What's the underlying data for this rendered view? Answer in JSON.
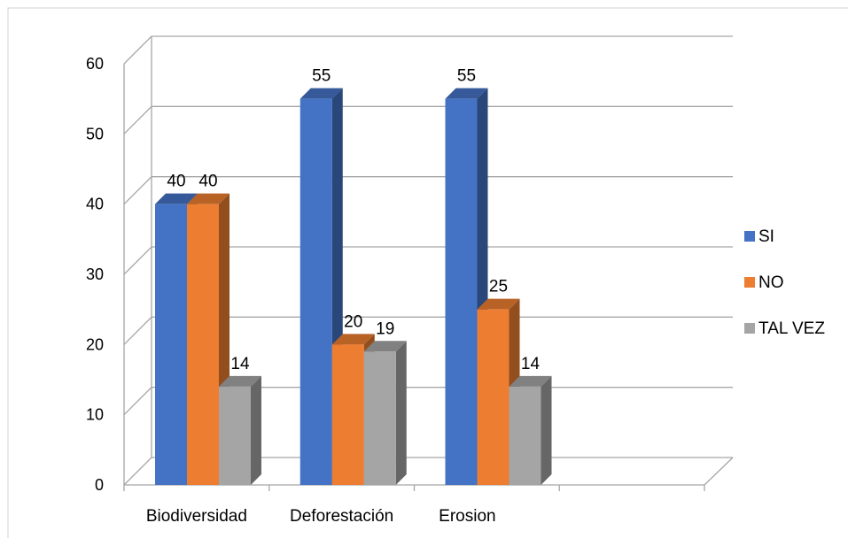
{
  "chart_data": {
    "type": "bar",
    "categories": [
      "Biodiversidad",
      "Deforestación",
      "Erosion",
      ""
    ],
    "series": [
      {
        "name": "SI",
        "values": [
          40,
          55,
          55,
          null
        ]
      },
      {
        "name": "NO",
        "values": [
          40,
          20,
          25,
          null
        ]
      },
      {
        "name": "TAL VEZ",
        "values": [
          14,
          19,
          14,
          null
        ]
      }
    ],
    "ylim": [
      0,
      60
    ],
    "yticks": [
      0,
      10,
      20,
      30,
      40,
      50,
      60
    ],
    "grid": true,
    "legend": "right",
    "data_labels": true,
    "colors": {
      "SI": "#4472C4",
      "NO": "#ED7D31",
      "TAL VEZ": "#A5A5A5"
    }
  }
}
